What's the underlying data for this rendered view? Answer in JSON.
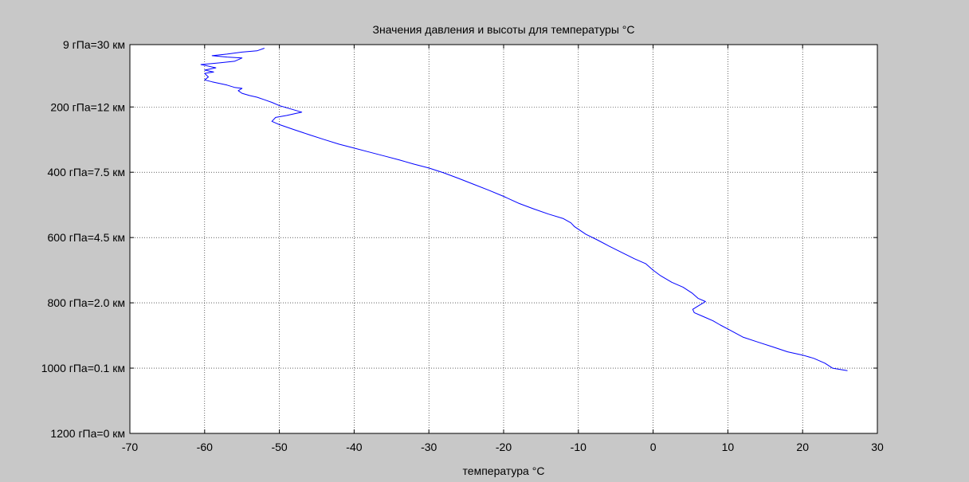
{
  "chart_data": {
    "type": "line",
    "title": "Значения  давления и высоты для  температуры °C",
    "xlabel": "температура °C",
    "ylabel": "",
    "xlim": [
      -70,
      30
    ],
    "x_ticks": [
      -70,
      -60,
      -50,
      -40,
      -30,
      -20,
      -10,
      0,
      10,
      20,
      30
    ],
    "y_tick_labels": [
      "9 гПа=30 км",
      "200 гПа=12 км",
      "400 гПа=7.5 км",
      "600 гПа=4.5 км",
      "800 гПа=2.0 км",
      "1000 гПа=0.1 км",
      "1200 гПа=0 км"
    ],
    "y_unit": "гПа",
    "y_ticks": [
      9,
      200,
      400,
      600,
      800,
      1000,
      1200
    ],
    "ylim": [
      9,
      1200
    ],
    "y_reversed": true,
    "grid": true,
    "legend": "none",
    "series": [
      {
        "color": "#0000ff",
        "points": [
          [
            26,
            1008
          ],
          [
            24,
            1000
          ],
          [
            23,
            985
          ],
          [
            21.5,
            970
          ],
          [
            20,
            960
          ],
          [
            18,
            950
          ],
          [
            16,
            935
          ],
          [
            14,
            920
          ],
          [
            12,
            905
          ],
          [
            10,
            880
          ],
          [
            9,
            868
          ],
          [
            8,
            855
          ],
          [
            6.5,
            840
          ],
          [
            5.5,
            830
          ],
          [
            5.3,
            820
          ],
          [
            6,
            810
          ],
          [
            7,
            796
          ],
          [
            6,
            786
          ],
          [
            5.2,
            770
          ],
          [
            4,
            752
          ],
          [
            2.5,
            737
          ],
          [
            1,
            717
          ],
          [
            0,
            700
          ],
          [
            -1,
            680
          ],
          [
            -2.5,
            665
          ],
          [
            -4,
            648
          ],
          [
            -6,
            625
          ],
          [
            -7.5,
            607
          ],
          [
            -9,
            590
          ],
          [
            -10.5,
            567
          ],
          [
            -11,
            555
          ],
          [
            -12,
            542
          ],
          [
            -14,
            528
          ],
          [
            -16,
            512
          ],
          [
            -18,
            495
          ],
          [
            -20,
            474
          ],
          [
            -22,
            455
          ],
          [
            -24,
            437
          ],
          [
            -26,
            419
          ],
          [
            -28,
            402
          ],
          [
            -30,
            387
          ],
          [
            -32,
            375
          ],
          [
            -34,
            362
          ],
          [
            -36,
            350
          ],
          [
            -38,
            338
          ],
          [
            -40,
            326
          ],
          [
            -42,
            314
          ],
          [
            -44,
            300
          ],
          [
            -46,
            285
          ],
          [
            -48,
            270
          ],
          [
            -50,
            254
          ],
          [
            -51,
            244
          ],
          [
            -50.5,
            232
          ],
          [
            -49,
            226
          ],
          [
            -47,
            216
          ],
          [
            -48.5,
            206
          ],
          [
            -50,
            196
          ],
          [
            -51,
            186
          ],
          [
            -52,
            178
          ],
          [
            -53,
            170
          ],
          [
            -54,
            165
          ],
          [
            -55,
            158
          ],
          [
            -55.5,
            150
          ],
          [
            -55,
            143
          ],
          [
            -56,
            140
          ],
          [
            -57,
            133
          ],
          [
            -58,
            128
          ],
          [
            -59,
            123
          ],
          [
            -60,
            117
          ],
          [
            -59.5,
            108
          ],
          [
            -60,
            97
          ],
          [
            -58.8,
            93
          ],
          [
            -60,
            87
          ],
          [
            -58.5,
            80
          ],
          [
            -60.5,
            70
          ],
          [
            -58,
            65
          ],
          [
            -56,
            60
          ],
          [
            -55,
            50
          ],
          [
            -57,
            47
          ],
          [
            -59,
            43
          ],
          [
            -57,
            38
          ],
          [
            -55,
            32
          ],
          [
            -53,
            28
          ],
          [
            -52,
            20
          ]
        ]
      }
    ]
  }
}
